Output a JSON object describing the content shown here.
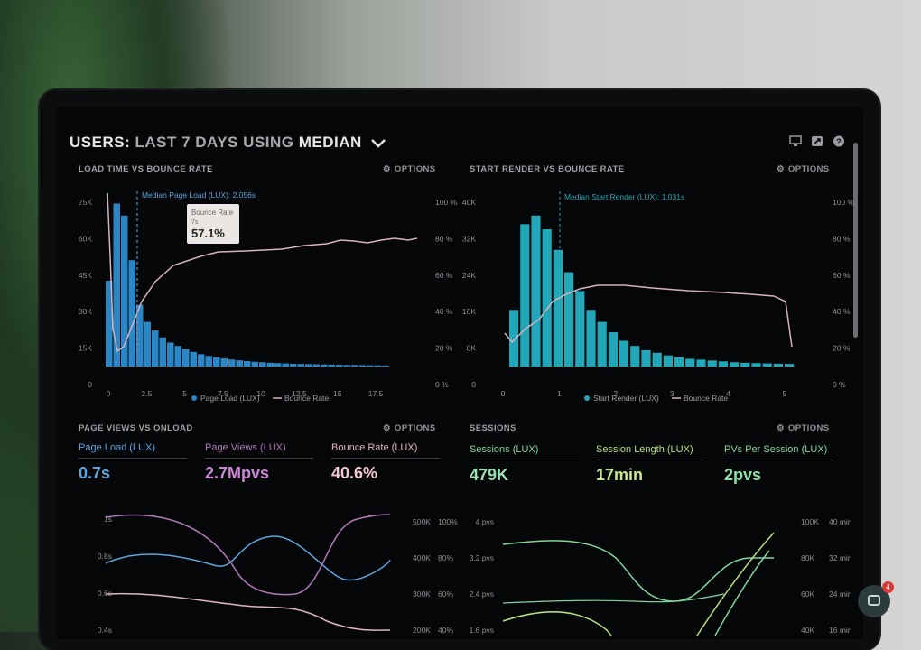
{
  "header": {
    "title_prefix": "USERS: ",
    "title_period": "LAST 7 DAYS",
    "title_mid": " USING ",
    "title_metric": "MEDIAN",
    "icons": [
      "monitor-icon",
      "share-icon",
      "help-icon"
    ]
  },
  "options_label": "OPTIONS",
  "panels": {
    "load_time": {
      "title": "LOAD TIME VS BOUNCE RATE",
      "marker_label": "Median Page Load (LUX): 2.056s",
      "tooltip": {
        "title": "Bounce Rate",
        "sub": "7s",
        "value": "57.1%"
      },
      "left_ticks": [
        "75K",
        "60K",
        "45K",
        "30K",
        "15K",
        "0"
      ],
      "right_ticks": [
        "100 %",
        "80 %",
        "60 %",
        "40 %",
        "20 %",
        "0 %"
      ],
      "x_ticks": [
        "0",
        "2.5",
        "5",
        "7.5",
        "10",
        "12.5",
        "15",
        "17.5"
      ],
      "legend": [
        "Page Load (LUX)",
        "Bounce Rate"
      ]
    },
    "start_render": {
      "title": "START RENDER VS BOUNCE RATE",
      "marker_label": "Median Start Render (LUX): 1.031s",
      "left_ticks": [
        "40K",
        "32K",
        "24K",
        "16K",
        "8K",
        "0"
      ],
      "right_ticks": [
        "100 %",
        "80 %",
        "60 %",
        "40 %",
        "20 %",
        "0 %"
      ],
      "x_ticks": [
        "0",
        "1",
        "2",
        "3",
        "4",
        "5"
      ],
      "legend": [
        "Start Render (LUX)",
        "Bounce Rate"
      ]
    },
    "page_views": {
      "title": "PAGE VIEWS VS ONLOAD",
      "metrics": [
        {
          "label": "Page Load (LUX)",
          "value": "0.7s"
        },
        {
          "label": "Page Views (LUX)",
          "value": "2.7Mpvs"
        },
        {
          "label": "Bounce Rate (LUX)",
          "value": "40.6%"
        }
      ],
      "left_ticks": [
        "1s",
        "0.8s",
        "0.6s",
        "0.4s"
      ],
      "mid_ticks": [
        "500K",
        "400K",
        "300K",
        "200K"
      ],
      "right_ticks": [
        "100%",
        "80%",
        "60%",
        "40%"
      ]
    },
    "sessions": {
      "title": "SESSIONS",
      "metrics": [
        {
          "label": "Sessions (LUX)",
          "value": "479K"
        },
        {
          "label": "Session Length (LUX)",
          "value": "17min"
        },
        {
          "label": "PVs Per Session (LUX)",
          "value": "2pvs"
        }
      ],
      "left_ticks": [
        "4 pvs",
        "3.2 pvs",
        "2.4 pvs",
        "1.6 pvs"
      ],
      "mid_ticks": [
        "100K",
        "80K",
        "60K",
        "40K"
      ],
      "right_ticks": [
        "40 min",
        "32 min",
        "24 min",
        "16 min"
      ]
    }
  },
  "chat": {
    "badge": "4"
  },
  "colors": {
    "blue_bar": "#2b86c5",
    "teal_bar": "#22a7b8",
    "bounce_line": "#d8b2bd",
    "pv_blue": "#5aa7e0",
    "pv_pink": "#d89bd8",
    "s_green": "#7fd6a0",
    "s_lime": "#b7e07a"
  }
}
